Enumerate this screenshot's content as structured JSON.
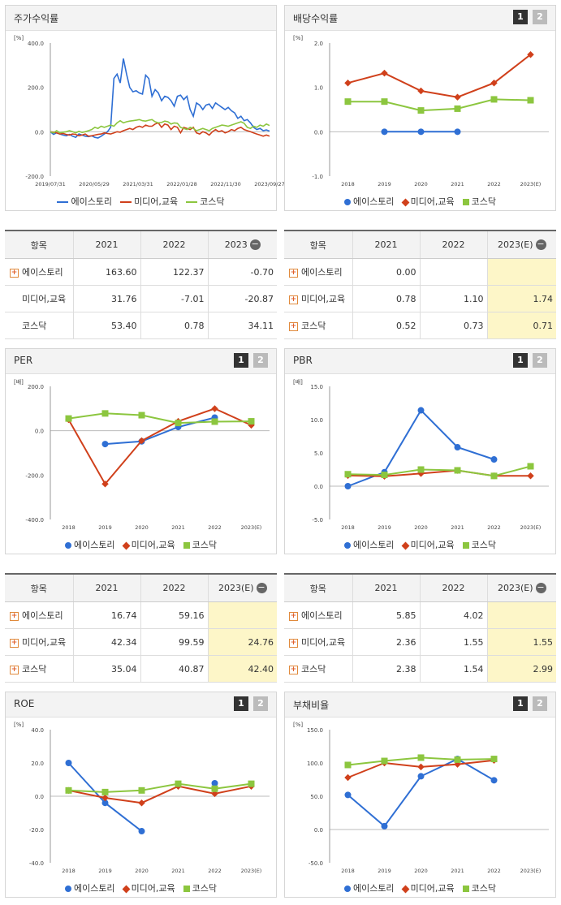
{
  "colors": {
    "ace": "#2f6fd4",
    "media": "#d0401b",
    "kosdaq": "#8cc63f"
  },
  "legend": [
    "에이스토리",
    "미디어,교육",
    "코스닥"
  ],
  "panels": {
    "stock": {
      "title": "주가수익률",
      "unit": "[%]"
    },
    "div": {
      "title": "배당수익률",
      "unit": "[%]",
      "page1": "1",
      "page2": "2"
    },
    "per": {
      "title": "PER",
      "unit": "[배]",
      "page1": "1",
      "page2": "2"
    },
    "pbr": {
      "title": "PBR",
      "unit": "[배]",
      "page1": "1",
      "page2": "2"
    },
    "roe": {
      "title": "ROE",
      "unit": "[%]",
      "page1": "1",
      "page2": "2"
    },
    "debt": {
      "title": "부채비율",
      "unit": "[%]",
      "page1": "1",
      "page2": "2"
    }
  },
  "chart_data": [
    {
      "id": "stock",
      "type": "line",
      "title": "주가수익률",
      "ylim": [
        -200,
        400
      ],
      "yticks": [
        "400.0",
        "200.0",
        "0.0",
        "-200.0"
      ],
      "xticks": [
        "2019/07/31",
        "2020/05/29",
        "2021/03/31",
        "2022/01/28",
        "2022/11/30",
        "2023/09/27"
      ],
      "series": [
        {
          "name": "에이스토리",
          "values": [
            0,
            -12,
            -5,
            -10,
            -15,
            -18,
            -12,
            -20,
            -25,
            -10,
            -15,
            -20,
            -22,
            -18,
            -25,
            -28,
            -20,
            -10,
            0,
            20,
            240,
            260,
            220,
            330,
            260,
            200,
            180,
            185,
            175,
            170,
            255,
            240,
            160,
            190,
            175,
            140,
            160,
            155,
            140,
            115,
            160,
            165,
            145,
            160,
            100,
            70,
            130,
            120,
            100,
            120,
            125,
            105,
            130,
            120,
            110,
            100,
            110,
            95,
            85,
            60,
            70,
            50,
            55,
            40,
            20,
            10,
            15,
            5,
            8,
            3
          ]
        },
        {
          "name": "미디어,교육",
          "values": [
            0,
            -2,
            -5,
            -10,
            -8,
            -12,
            -15,
            -10,
            -12,
            -18,
            -15,
            -10,
            -20,
            -18,
            -15,
            -12,
            -10,
            -5,
            -8,
            -10,
            -5,
            0,
            -2,
            5,
            10,
            15,
            10,
            20,
            25,
            20,
            30,
            25,
            25,
            35,
            40,
            20,
            35,
            30,
            10,
            25,
            20,
            -5,
            20,
            15,
            10,
            20,
            -5,
            -10,
            0,
            -5,
            -15,
            0,
            10,
            0,
            5,
            -5,
            0,
            10,
            5,
            15,
            20,
            10,
            5,
            0,
            -5,
            -10,
            -15,
            -20,
            -15,
            -20
          ]
        },
        {
          "name": "코스닥",
          "values": [
            0,
            -5,
            5,
            -5,
            -2,
            0,
            5,
            0,
            -5,
            2,
            -3,
            0,
            5,
            10,
            20,
            15,
            25,
            20,
            25,
            30,
            25,
            40,
            50,
            40,
            45,
            48,
            50,
            52,
            55,
            50,
            48,
            52,
            55,
            45,
            40,
            42,
            48,
            45,
            35,
            40,
            38,
            20,
            15,
            10,
            20,
            15,
            5,
            10,
            15,
            10,
            5,
            15,
            20,
            25,
            30,
            28,
            25,
            30,
            35,
            40,
            45,
            38,
            20,
            15,
            25,
            20,
            30,
            25,
            35,
            28
          ]
        }
      ]
    },
    {
      "id": "div",
      "type": "line",
      "title": "배당수익률",
      "ylim": [
        -1,
        2
      ],
      "yticks": [
        "2.0",
        "1.0",
        "0.0",
        "-1.0"
      ],
      "categories": [
        "2018",
        "2019",
        "2020",
        "2021",
        "2022",
        "2023(E)"
      ],
      "series": [
        {
          "name": "에이스토리",
          "values": [
            null,
            0,
            0,
            0,
            null,
            null
          ]
        },
        {
          "name": "미디어,교육",
          "values": [
            1.1,
            1.32,
            0.92,
            0.78,
            1.1,
            1.74
          ]
        },
        {
          "name": "코스닥",
          "values": [
            0.68,
            0.68,
            0.48,
            0.52,
            0.73,
            0.71
          ]
        }
      ]
    },
    {
      "id": "per",
      "type": "line",
      "title": "PER",
      "ylim": [
        -400,
        200
      ],
      "yticks": [
        "200.0",
        "0.0",
        "-200.0",
        "-400.0"
      ],
      "categories": [
        "2018",
        "2019",
        "2020",
        "2021",
        "2022",
        "2023(E)"
      ],
      "series": [
        {
          "name": "에이스토리",
          "values": [
            null,
            -60,
            -48,
            16.74,
            59.16,
            null
          ]
        },
        {
          "name": "미디어,교육",
          "values": [
            50,
            -240,
            -45,
            42.34,
            99.59,
            24.76
          ]
        },
        {
          "name": "코스닥",
          "values": [
            55,
            78,
            70,
            35.04,
            40.87,
            42.4
          ]
        }
      ]
    },
    {
      "id": "pbr",
      "type": "line",
      "title": "PBR",
      "ylim": [
        -5,
        15
      ],
      "yticks": [
        "15.0",
        "10.0",
        "5.0",
        "0.0",
        "-5.0"
      ],
      "categories": [
        "2018",
        "2019",
        "2020",
        "2021",
        "2022",
        "2023(E)"
      ],
      "series": [
        {
          "name": "에이스토리",
          "values": [
            0,
            2.1,
            11.4,
            5.85,
            4.02,
            null
          ]
        },
        {
          "name": "미디어,교육",
          "values": [
            1.6,
            1.5,
            1.9,
            2.36,
            1.55,
            1.55
          ]
        },
        {
          "name": "코스닥",
          "values": [
            1.8,
            1.7,
            2.5,
            2.38,
            1.54,
            2.99
          ]
        }
      ]
    },
    {
      "id": "roe",
      "type": "line",
      "title": "ROE",
      "ylim": [
        -40,
        40
      ],
      "yticks": [
        "40.0",
        "20.0",
        "0.0",
        "-20.0",
        "-40.0"
      ],
      "categories": [
        "2018",
        "2019",
        "2020",
        "2021",
        "2022",
        "2023(E)"
      ],
      "series": [
        {
          "name": "에이스토리",
          "values": [
            20,
            -4,
            -21,
            null,
            7.8,
            null
          ]
        },
        {
          "name": "미디어,교육",
          "values": [
            3.5,
            -1,
            -4,
            6,
            1.5,
            6
          ]
        },
        {
          "name": "코스닥",
          "values": [
            3.5,
            2.5,
            3.5,
            7.5,
            4.5,
            7.5
          ]
        }
      ]
    },
    {
      "id": "debt",
      "type": "line",
      "title": "부채비율",
      "ylim": [
        -50,
        150
      ],
      "yticks": [
        "150.0",
        "100.0",
        "50.0",
        "0.0",
        "-50.0"
      ],
      "categories": [
        "2018",
        "2019",
        "2020",
        "2021",
        "2022",
        "2023(E)"
      ],
      "series": [
        {
          "name": "에이스토리",
          "values": [
            52,
            5,
            80,
            106,
            74,
            null
          ]
        },
        {
          "name": "미디어,교육",
          "values": [
            78,
            100,
            94,
            98,
            104,
            null
          ]
        },
        {
          "name": "코스닥",
          "values": [
            97,
            103,
            108,
            105,
            106,
            null
          ]
        }
      ]
    }
  ],
  "tables": {
    "stock": {
      "header": [
        "항목",
        "2021",
        "2022",
        "2023"
      ],
      "rows": [
        {
          "name": "에이스토리",
          "plus": true,
          "v": [
            "163.60",
            "122.37",
            "-0.70"
          ]
        },
        {
          "name": "미디어,교육",
          "plus": false,
          "v": [
            "31.76",
            "-7.01",
            "-20.87"
          ]
        },
        {
          "name": "코스닥",
          "plus": false,
          "v": [
            "53.40",
            "0.78",
            "34.11"
          ]
        }
      ]
    },
    "div": {
      "header": [
        "항목",
        "2021",
        "2022",
        "2023(E)"
      ],
      "rows": [
        {
          "name": "에이스토리",
          "plus": true,
          "v": [
            "0.00",
            "",
            ""
          ]
        },
        {
          "name": "미디어,교육",
          "plus": true,
          "v": [
            "0.78",
            "1.10",
            "1.74"
          ]
        },
        {
          "name": "코스닥",
          "plus": true,
          "v": [
            "0.52",
            "0.73",
            "0.71"
          ]
        }
      ]
    },
    "per": {
      "header": [
        "항목",
        "2021",
        "2022",
        "2023(E)"
      ],
      "rows": [
        {
          "name": "에이스토리",
          "plus": true,
          "v": [
            "16.74",
            "59.16",
            ""
          ]
        },
        {
          "name": "미디어,교육",
          "plus": true,
          "v": [
            "42.34",
            "99.59",
            "24.76"
          ]
        },
        {
          "name": "코스닥",
          "plus": true,
          "v": [
            "35.04",
            "40.87",
            "42.40"
          ]
        }
      ]
    },
    "pbr": {
      "header": [
        "항목",
        "2021",
        "2022",
        "2023(E)"
      ],
      "rows": [
        {
          "name": "에이스토리",
          "plus": true,
          "v": [
            "5.85",
            "4.02",
            ""
          ]
        },
        {
          "name": "미디어,교육",
          "plus": true,
          "v": [
            "2.36",
            "1.55",
            "1.55"
          ]
        },
        {
          "name": "코스닥",
          "plus": true,
          "v": [
            "2.38",
            "1.54",
            "2.99"
          ]
        }
      ]
    }
  }
}
